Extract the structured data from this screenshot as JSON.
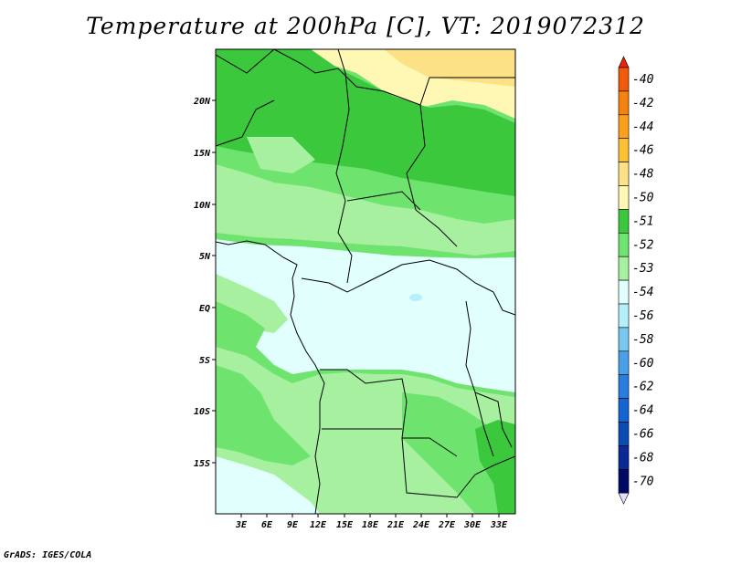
{
  "title": "Temperature at 200hPa [C], VT: 2019072312",
  "credit": "GrADS: IGES/COLA",
  "map": {
    "lat_ticks": [
      "20N",
      "15N",
      "10N",
      "5N",
      "EQ",
      "5S",
      "10S",
      "15S"
    ],
    "lon_ticks": [
      "3E",
      "6E",
      "9E",
      "12E",
      "15E",
      "18E",
      "21E",
      "24E",
      "27E",
      "30E",
      "33E"
    ]
  },
  "colorbar": {
    "labels": [
      "-40",
      "-42",
      "-44",
      "-46",
      "-48",
      "-50",
      "-51",
      "-52",
      "-53",
      "-54",
      "-56",
      "-58",
      "-60",
      "-62",
      "-64",
      "-66",
      "-68",
      "-70"
    ],
    "colors": [
      "#e8230a",
      "#f05a0a",
      "#f5820f",
      "#faa01e",
      "#fcc034",
      "#fde187",
      "#fff7b4",
      "#3cc83c",
      "#6ee46e",
      "#a6f0a0",
      "#e0fffd",
      "#b4f0fa",
      "#78c8f0",
      "#4aa0e8",
      "#2a7de0",
      "#1464d2",
      "#0a4bb4",
      "#0a2896",
      "#000a64",
      "#e1e1ff"
    ]
  }
}
